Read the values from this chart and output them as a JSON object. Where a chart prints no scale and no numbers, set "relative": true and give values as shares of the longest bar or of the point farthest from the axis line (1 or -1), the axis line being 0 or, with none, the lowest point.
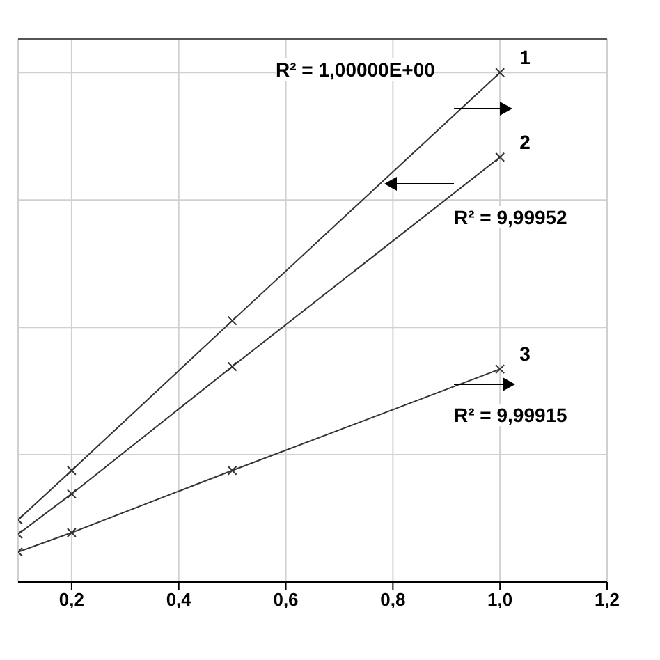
{
  "chart_data": {
    "type": "line",
    "relative": true,
    "x": [
      0.1,
      0.2,
      0.5,
      1.0
    ],
    "xlim": [
      0.1,
      1.2
    ],
    "xticks": [
      {
        "value": 0.2,
        "label": "0,2"
      },
      {
        "value": 0.4,
        "label": "0,4"
      },
      {
        "value": 0.6,
        "label": "0,6"
      },
      {
        "value": 0.8,
        "label": "0,8"
      },
      {
        "value": 1.0,
        "label": "1,0"
      },
      {
        "value": 1.2,
        "label": "1,2"
      }
    ],
    "series": [
      {
        "name": "1",
        "color": "#333333",
        "values": [
          0.122,
          0.219,
          0.513,
          1
        ]
      },
      {
        "name": "2",
        "color": "#333333",
        "values": [
          0.094,
          0.173,
          0.423,
          0.834
        ]
      },
      {
        "name": "3",
        "color": "#333333",
        "values": [
          0.059,
          0.097,
          0.219,
          0.418
        ]
      }
    ],
    "annotations": [
      "R² = 1,00000E+00",
      "R² = 9,99952",
      "R² = 9,99915"
    ],
    "grid": true,
    "marker": "cross",
    "line_style": "solid"
  }
}
